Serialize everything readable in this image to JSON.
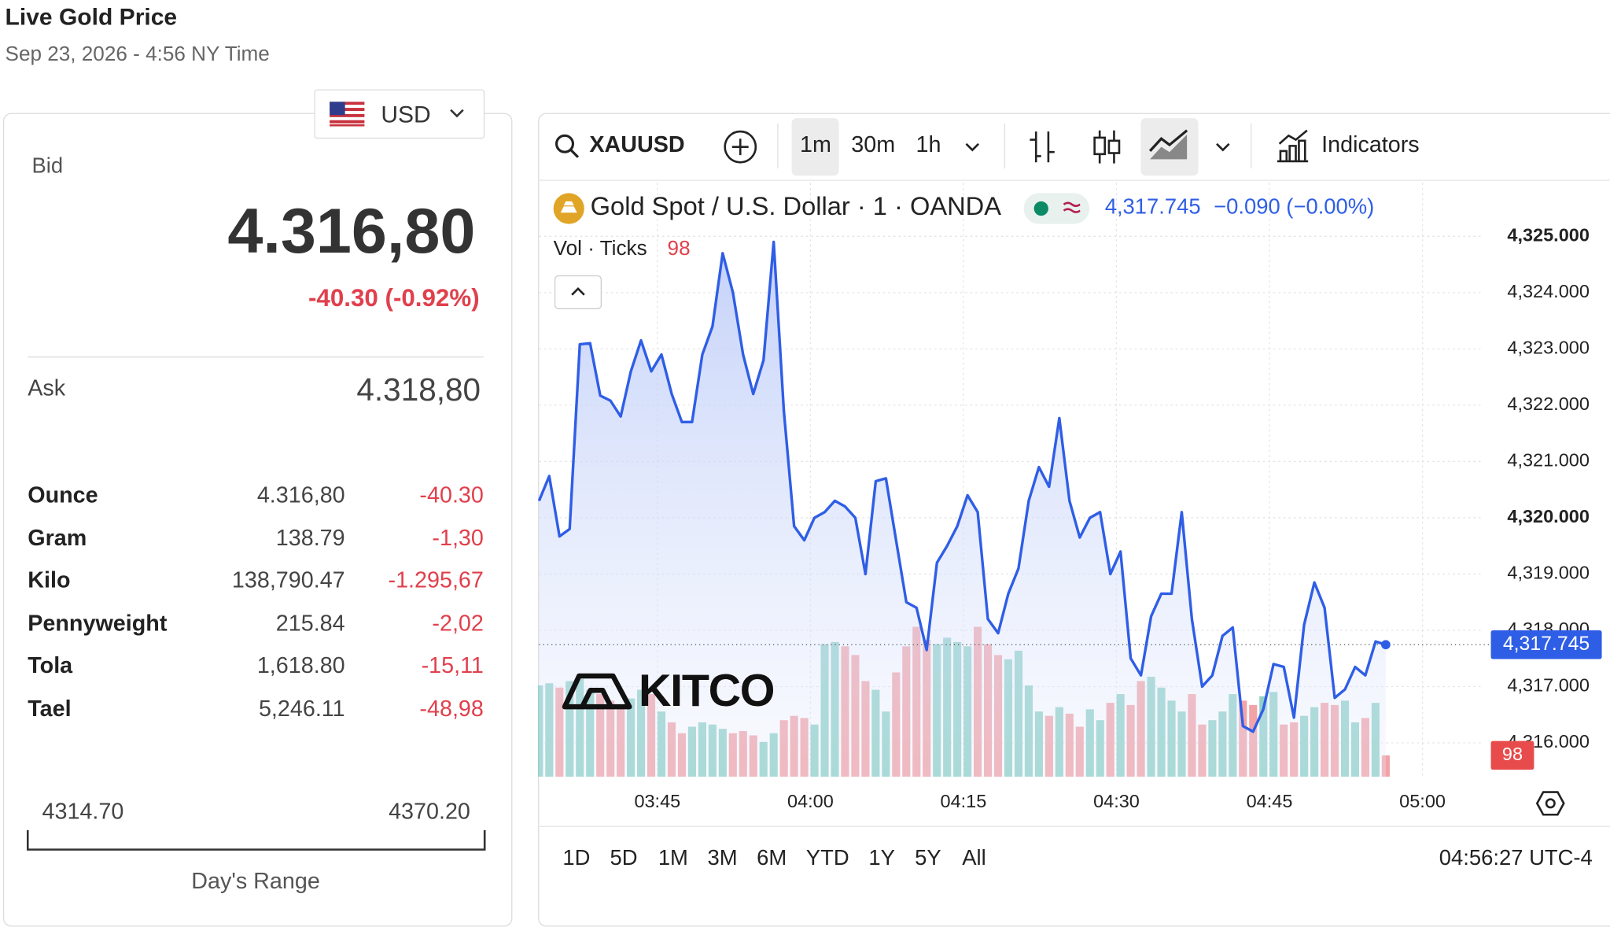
{
  "header": {
    "title": "Live Gold Price",
    "subtitle": "Sep 23, 2026 - 4:56 NY Time"
  },
  "currency": "USD",
  "bid": {
    "label": "Bid",
    "value": "4.316,80",
    "change": "-40.30 (-0.92%)"
  },
  "ask": {
    "label": "Ask",
    "value": "4.318,80"
  },
  "table": {
    "rows": [
      [
        "Ounce",
        "4.316,80",
        "-40.30"
      ],
      [
        "Gram",
        "138.79",
        "-1,30"
      ],
      [
        "Kilo",
        "138,790.47",
        "-1.295,67"
      ],
      [
        "Pennyweight",
        "215.84",
        "-2,02"
      ],
      [
        "Tola",
        "1,618.80",
        "-15,11"
      ],
      [
        "Tael",
        "5,246.11",
        "-48,98"
      ]
    ]
  },
  "range": {
    "low": "4314.70",
    "high": "4370.20",
    "label": "Day's Range"
  },
  "toolbar": {
    "symbol": "XAUUSD",
    "intervals": [
      "1m",
      "30m",
      "1h"
    ],
    "indicators": "Indicators"
  },
  "ranges": [
    "1D",
    "5D",
    "1M",
    "3M",
    "6M",
    "YTD",
    "1Y",
    "5Y",
    "All"
  ],
  "clock": "04:56:27 UTC-4",
  "watermark": "KITCO",
  "chart_data": {
    "type": "line",
    "title": "Gold Spot / U.S. Dollar · 1 · OANDA",
    "last_label": "4,317.745",
    "change_label": "−0.090 (−0.00%)",
    "color": "#2f5ee6",
    "values": [
      4320.3,
      4320.74,
      4319.67,
      4319.8,
      4323.08,
      4323.1,
      4322.17,
      4322.08,
      4321.8,
      4322.6,
      4323.15,
      4322.6,
      4322.9,
      4322.2,
      4321.7,
      4321.7,
      4322.9,
      4323.4,
      4324.7,
      4324.0,
      4322.9,
      4322.2,
      4322.8,
      4324.9,
      4321.9,
      4319.85,
      4319.6,
      4320.0,
      4320.1,
      4320.3,
      4320.2,
      4320.0,
      4319.0,
      4320.65,
      4320.7,
      4319.6,
      4318.5,
      4318.4,
      4317.65,
      4319.2,
      4319.5,
      4319.85,
      4320.4,
      4320.1,
      4318.2,
      4317.95,
      4318.65,
      4319.1,
      4320.3,
      4320.9,
      4320.55,
      4321.77,
      4320.3,
      4319.65,
      4320.0,
      4320.1,
      4319.0,
      4319.4,
      4317.5,
      4317.2,
      4318.25,
      4318.65,
      4318.65,
      4320.1,
      4318.2,
      4317.0,
      4317.2,
      4317.9,
      4318.05,
      4316.3,
      4316.2,
      4316.6,
      4317.4,
      4317.35,
      4316.45,
      4318.1,
      4318.85,
      4318.4,
      4316.8,
      4316.95,
      4317.35,
      4317.2,
      4317.8,
      4317.745
    ],
    "xlim": [
      0,
      92.3
    ],
    "xticks": [
      {
        "value": 11.6,
        "label": "03:45"
      },
      {
        "value": 26.6,
        "label": "04:00"
      },
      {
        "value": 41.6,
        "label": "04:15"
      },
      {
        "value": 56.6,
        "label": "04:30"
      },
      {
        "value": 71.6,
        "label": "04:45"
      },
      {
        "value": 86.6,
        "label": "05:00"
      }
    ],
    "ylim": [
      4315.4,
      4325.95
    ],
    "yticks": [
      {
        "value": 4316,
        "label": "4,316.000"
      },
      {
        "value": 4317,
        "label": "4,317.000"
      },
      {
        "value": 4318,
        "label": "4,318.000"
      },
      {
        "value": 4319,
        "label": "4,319.000"
      },
      {
        "value": 4320,
        "label": "4,320.000"
      },
      {
        "value": 4321,
        "label": "4,321.000"
      },
      {
        "value": 4322,
        "label": "4,322.000"
      },
      {
        "value": 4323,
        "label": "4,323.000"
      },
      {
        "value": 4324,
        "label": "4,324.000"
      },
      {
        "value": 4325,
        "label": "4,325.000"
      }
    ],
    "grid": true,
    "volume": {
      "label": "Vol · Ticks",
      "up_color": "#8fd1c7",
      "down_color": "#f2a3a7",
      "ylim": [
        0,
        2734
      ],
      "values": [
        420,
        430,
        410,
        440,
        450,
        400,
        380,
        350,
        330,
        360,
        400,
        380,
        300,
        250,
        200,
        230,
        250,
        240,
        220,
        200,
        210,
        190,
        160,
        200,
        260,
        280,
        270,
        240,
        610,
        620,
        600,
        560,
        440,
        400,
        300,
        480,
        600,
        690,
        630,
        610,
        640,
        620,
        600,
        690,
        610,
        560,
        540,
        580,
        420,
        300,
        280,
        320,
        290,
        230,
        310,
        260,
        340,
        380,
        330,
        440,
        460,
        410,
        350,
        300,
        380,
        240,
        260,
        300,
        380,
        350,
        330,
        370,
        390,
        240,
        250,
        280,
        320,
        340,
        330,
        350,
        250,
        270,
        340,
        98
      ]
    }
  }
}
